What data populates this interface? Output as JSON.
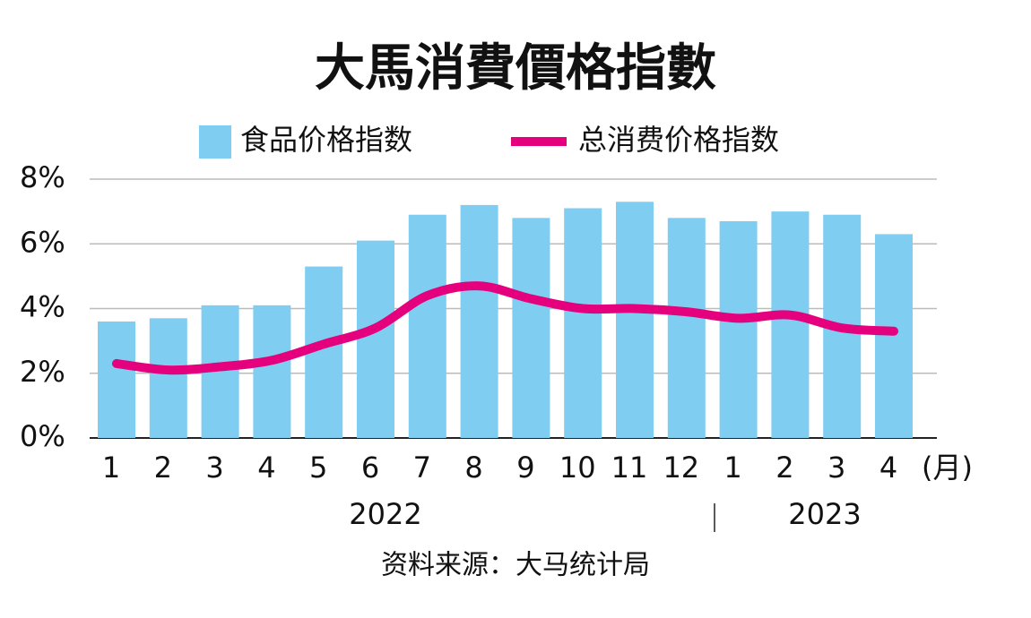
{
  "chart_data": {
    "type": "bar-line",
    "title": "大馬消費價格指數",
    "categories": [
      "1",
      "2",
      "3",
      "4",
      "5",
      "6",
      "7",
      "8",
      "9",
      "10",
      "11",
      "12",
      "1",
      "2",
      "3",
      "4"
    ],
    "unit_label": "(月)",
    "year_labels": [
      "2022",
      "2023"
    ],
    "series": [
      {
        "name": "食品价格指数",
        "type": "bar",
        "color": "#7fcdf0",
        "values": [
          3.6,
          3.7,
          4.1,
          4.1,
          5.3,
          6.1,
          6.9,
          7.2,
          6.8,
          7.1,
          7.3,
          6.8,
          6.7,
          7.0,
          6.9,
          6.3
        ]
      },
      {
        "name": "总消费价格指数",
        "type": "line",
        "color": "#e5007e",
        "values": [
          2.3,
          2.1,
          2.2,
          2.4,
          2.9,
          3.4,
          4.4,
          4.7,
          4.3,
          4.0,
          4.0,
          3.9,
          3.7,
          3.8,
          3.4,
          3.3
        ]
      }
    ],
    "ylim": [
      0,
      8
    ],
    "yticks": [
      {
        "value": 0,
        "label": "0%"
      },
      {
        "value": 2,
        "label": "2%"
      },
      {
        "value": 4,
        "label": "4%"
      },
      {
        "value": 6,
        "label": "6%"
      },
      {
        "value": 8,
        "label": "8%"
      }
    ],
    "grid": true,
    "source": "资料来源：大马统计局"
  }
}
